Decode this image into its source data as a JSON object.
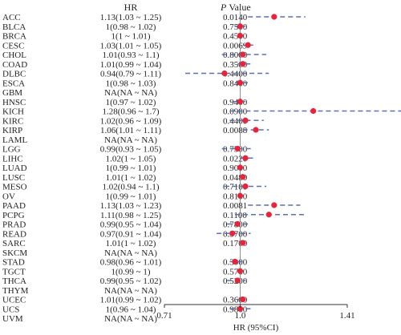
{
  "chart_data": {
    "type": "forest",
    "headers": {
      "hr": "HR",
      "p_prefix": "P",
      "p_label": "Value"
    },
    "xlabel": "HR (95%CI)",
    "xticks": [
      "0.71",
      "1.0",
      "1.41"
    ],
    "xlim": [
      0.71,
      1.41
    ],
    "reference_line": 1.0,
    "colors": {
      "point": "#e8243a",
      "ci": "#5b6fb3",
      "reference": "#777777",
      "axis": "#333333"
    },
    "rows": [
      {
        "label": "ACC",
        "hr_text": "1.13(1.03 ~ 1.25)",
        "p": "0.0140",
        "hr": 1.13,
        "lo": 1.03,
        "hi": 1.25
      },
      {
        "label": "BLCA",
        "hr_text": "1(0.98 ~ 1.02)",
        "p": "0.7500",
        "hr": 1.0,
        "lo": 0.98,
        "hi": 1.02
      },
      {
        "label": "BRCA",
        "hr_text": "1(1 ~ 1.01)",
        "p": "0.4500",
        "hr": 1.0,
        "lo": 1.0,
        "hi": 1.01
      },
      {
        "label": "CESC",
        "hr_text": "1.03(1.01 ~ 1.05)",
        "p": "0.0069",
        "hr": 1.03,
        "lo": 1.01,
        "hi": 1.05
      },
      {
        "label": "CHOL",
        "hr_text": "1.01(0.93 ~ 1.1)",
        "p": "0.8000",
        "hr": 1.01,
        "lo": 0.93,
        "hi": 1.1
      },
      {
        "label": "COAD",
        "hr_text": "1.01(0.99 ~ 1.04)",
        "p": "0.3500",
        "hr": 1.01,
        "lo": 0.99,
        "hi": 1.04
      },
      {
        "label": "DLBC",
        "hr_text": "0.94(0.79 ~ 1.11)",
        "p": "0.4400",
        "hr": 0.94,
        "lo": 0.79,
        "hi": 1.11
      },
      {
        "label": "ESCA",
        "hr_text": "1(0.98 ~ 1.03)",
        "p": "0.8400",
        "hr": 1.0,
        "lo": 0.98,
        "hi": 1.03
      },
      {
        "label": "GBM",
        "hr_text": "NA(NA ~ NA)",
        "p": "",
        "hr": null,
        "lo": null,
        "hi": null
      },
      {
        "label": "HNSC",
        "hr_text": "1(0.97 ~ 1.02)",
        "p": "0.9400",
        "hr": 1.0,
        "lo": 0.97,
        "hi": 1.02
      },
      {
        "label": "KICH",
        "hr_text": "1.28(0.96 ~ 1.7)",
        "p": "0.0900",
        "hr": 1.28,
        "lo": 0.96,
        "hi": 1.7
      },
      {
        "label": "KIRC",
        "hr_text": "1.02(0.96 ~ 1.09)",
        "p": "0.4400",
        "hr": 1.02,
        "lo": 0.96,
        "hi": 1.09
      },
      {
        "label": "KIRP",
        "hr_text": "1.06(1.01 ~ 1.11)",
        "p": "0.0088",
        "hr": 1.06,
        "lo": 1.01,
        "hi": 1.11
      },
      {
        "label": "LAML",
        "hr_text": "NA(NA ~ NA)",
        "p": "",
        "hr": null,
        "lo": null,
        "hi": null
      },
      {
        "label": "LGG",
        "hr_text": "0.99(0.93 ~ 1.05)",
        "p": "0.7500",
        "hr": 0.99,
        "lo": 0.93,
        "hi": 1.05
      },
      {
        "label": "LIHC",
        "hr_text": "1.02(1 ~ 1.05)",
        "p": "0.0220",
        "hr": 1.02,
        "lo": 1.0,
        "hi": 1.05
      },
      {
        "label": "LUAD",
        "hr_text": "1(0.99 ~ 1.01)",
        "p": "0.9000",
        "hr": 1.0,
        "lo": 0.99,
        "hi": 1.01
      },
      {
        "label": "LUSC",
        "hr_text": "1.01(1 ~ 1.02)",
        "p": "0.0480",
        "hr": 1.01,
        "lo": 1.0,
        "hi": 1.02
      },
      {
        "label": "MESO",
        "hr_text": "1.02(0.94 ~ 1.1)",
        "p": "0.7100",
        "hr": 1.02,
        "lo": 0.94,
        "hi": 1.1
      },
      {
        "label": "OV",
        "hr_text": "1(0.99 ~ 1.01)",
        "p": "0.8100",
        "hr": 1.0,
        "lo": 0.99,
        "hi": 1.01
      },
      {
        "label": "PAAD",
        "hr_text": "1.13(1.03 ~ 1.23)",
        "p": "0.0081",
        "hr": 1.13,
        "lo": 1.03,
        "hi": 1.23
      },
      {
        "label": "PCPG",
        "hr_text": "1.11(0.98 ~ 1.25)",
        "p": "0.1100",
        "hr": 1.11,
        "lo": 0.98,
        "hi": 1.25
      },
      {
        "label": "PRAD",
        "hr_text": "0.99(0.95 ~ 1.04)",
        "p": "0.7800",
        "hr": 0.99,
        "lo": 0.95,
        "hi": 1.04
      },
      {
        "label": "READ",
        "hr_text": "0.97(0.91 ~ 1.04)",
        "p": "0.3700",
        "hr": 0.97,
        "lo": 0.91,
        "hi": 1.04
      },
      {
        "label": "SARC",
        "hr_text": "1.01(1 ~ 1.02)",
        "p": "0.1700",
        "hr": 1.01,
        "lo": 1.0,
        "hi": 1.02
      },
      {
        "label": "SKCM",
        "hr_text": "NA(NA ~ NA)",
        "p": "",
        "hr": null,
        "lo": null,
        "hi": null
      },
      {
        "label": "STAD",
        "hr_text": "0.98(0.96 ~ 1.01)",
        "p": "0.3000",
        "hr": 0.98,
        "lo": 0.96,
        "hi": 1.01
      },
      {
        "label": "TGCT",
        "hr_text": "1(0.99 ~ 1)",
        "p": "0.5700",
        "hr": 1.0,
        "lo": 0.99,
        "hi": 1.0
      },
      {
        "label": "THCA",
        "hr_text": "0.99(0.95 ~ 1.02)",
        "p": "0.5200",
        "hr": 0.99,
        "lo": 0.95,
        "hi": 1.02
      },
      {
        "label": "THYM",
        "hr_text": "NA(NA ~ NA)",
        "p": "",
        "hr": null,
        "lo": null,
        "hi": null
      },
      {
        "label": "UCEC",
        "hr_text": "1.01(0.99 ~ 1.02)",
        "p": "0.3600",
        "hr": 1.01,
        "lo": 0.99,
        "hi": 1.02
      },
      {
        "label": "UCS",
        "hr_text": "1(0.96 ~ 1.04)",
        "p": "0.9800",
        "hr": 1.0,
        "lo": 0.96,
        "hi": 1.04
      },
      {
        "label": "UVM",
        "hr_text": "NA(NA ~ NA)",
        "p": "",
        "hr": null,
        "lo": null,
        "hi": null
      }
    ]
  }
}
